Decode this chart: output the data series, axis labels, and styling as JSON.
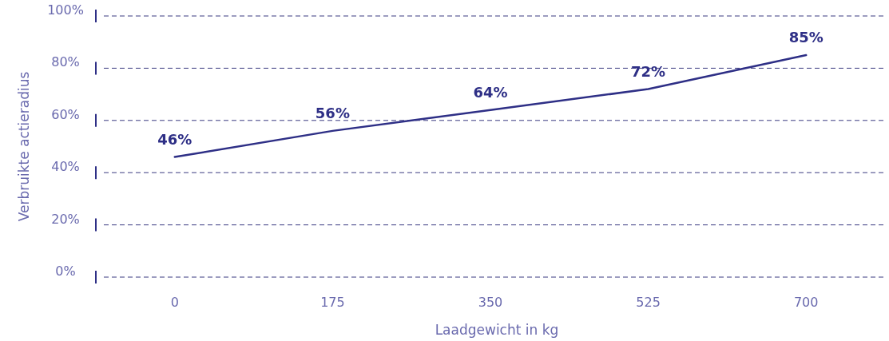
{
  "chart_data": {
    "type": "line",
    "xlabel": "Laadgewicht in kg",
    "ylabel": "Verbruikte actieradius",
    "categories": [
      "0",
      "175",
      "350",
      "525",
      "700"
    ],
    "series": [
      {
        "color": "#2e2f86",
        "values": [
          46,
          56,
          64,
          72,
          85
        ],
        "value_labels": [
          "46%",
          "56%",
          "64%",
          "72%",
          "85%"
        ]
      }
    ],
    "ylim": [
      0,
      100
    ],
    "yticks": [
      {
        "value": 0,
        "label": "0%"
      },
      {
        "value": 20,
        "label": "20%"
      },
      {
        "value": 40,
        "label": "40%"
      },
      {
        "value": 60,
        "label": "60%"
      },
      {
        "value": 80,
        "label": "80%"
      },
      {
        "value": 100,
        "label": "100%"
      }
    ],
    "grid": "y",
    "marker": "none",
    "line_style": "solid"
  }
}
